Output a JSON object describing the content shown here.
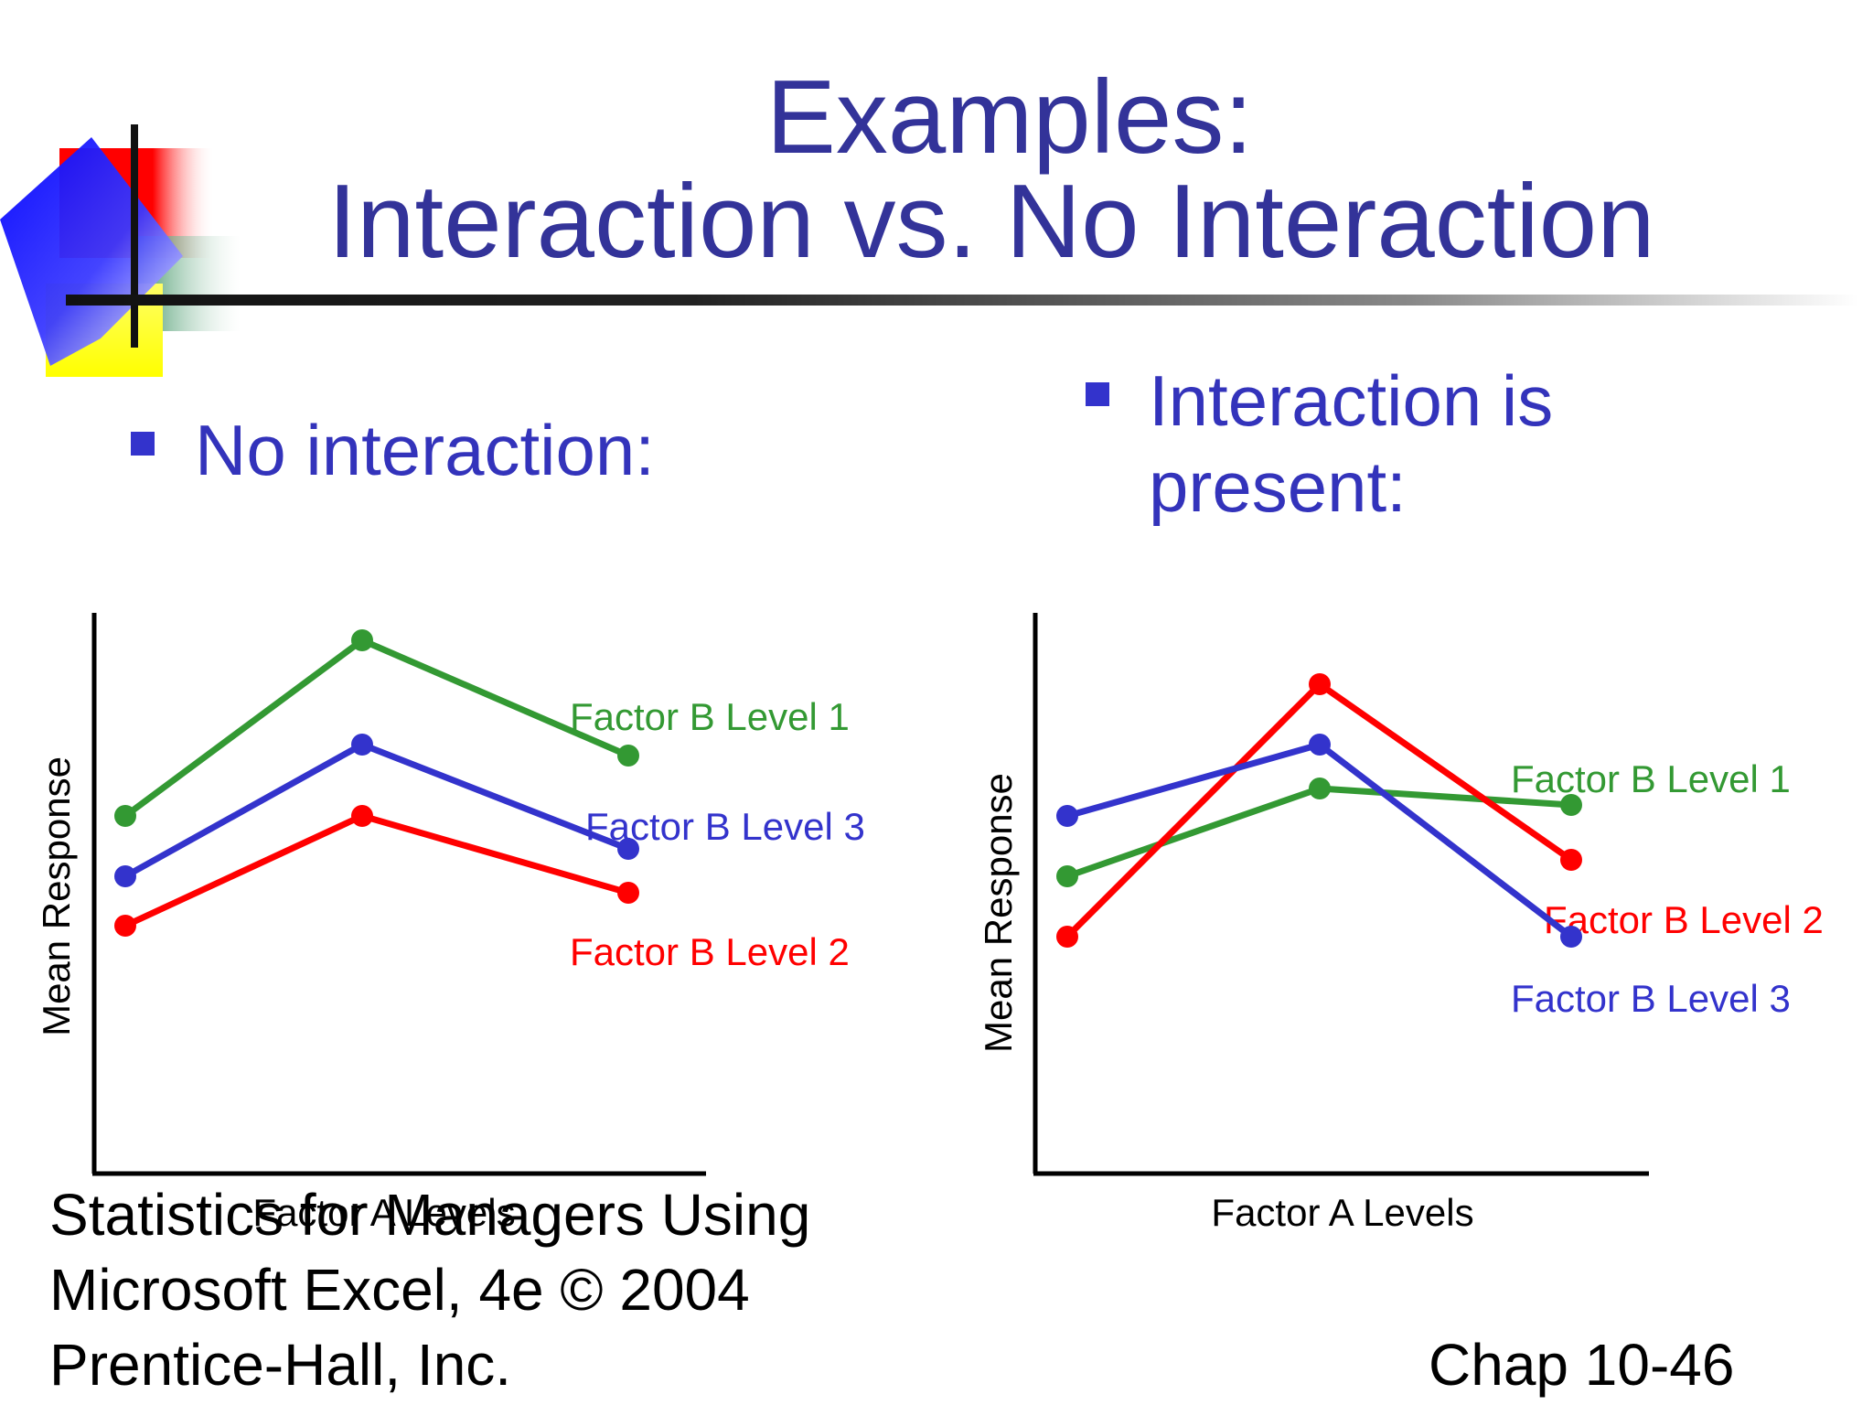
{
  "slide": {
    "title_line1": "Examples:",
    "title_line2": "Interaction vs. No Interaction",
    "bullets": [
      {
        "text": "No interaction:"
      },
      {
        "text_line1": "Interaction is",
        "text_line2": "present:"
      }
    ],
    "footer_left": [
      "Statistics for Managers Using",
      "Microsoft Excel, 4e © 2004",
      "Prentice-Hall, Inc."
    ],
    "footer_right": "Chap 10-46",
    "colors": {
      "title": "#333399",
      "bullet": "#3333cc",
      "green": "#339933",
      "blue": "#3333cc",
      "red": "#ff0000"
    }
  },
  "chart_data": [
    {
      "type": "line",
      "title": "",
      "xlabel": "Factor A Levels",
      "ylabel": "Mean Response",
      "x": [
        1,
        2,
        3
      ],
      "ylim": [
        0,
        10
      ],
      "grid": false,
      "series": [
        {
          "name": "Factor B Level 1",
          "color": "#339933",
          "values": [
            5.8,
            9.0,
            6.9
          ]
        },
        {
          "name": "Factor B Level 3",
          "color": "#3333cc",
          "values": [
            4.7,
            7.1,
            5.2
          ]
        },
        {
          "name": "Factor B Level 2",
          "color": "#ff0000",
          "values": [
            3.8,
            5.8,
            4.4
          ]
        }
      ]
    },
    {
      "type": "line",
      "title": "",
      "xlabel": "Factor A Levels",
      "ylabel": "Mean Response",
      "x": [
        1,
        2,
        3
      ],
      "ylim": [
        0,
        10
      ],
      "grid": false,
      "series": [
        {
          "name": "Factor B Level 1",
          "color": "#339933",
          "values": [
            4.7,
            6.3,
            6.0
          ]
        },
        {
          "name": "Factor B Level 2",
          "color": "#ff0000",
          "values": [
            3.6,
            8.2,
            5.0
          ]
        },
        {
          "name": "Factor B Level 3",
          "color": "#3333cc",
          "values": [
            5.8,
            7.1,
            3.6
          ]
        }
      ]
    }
  ]
}
